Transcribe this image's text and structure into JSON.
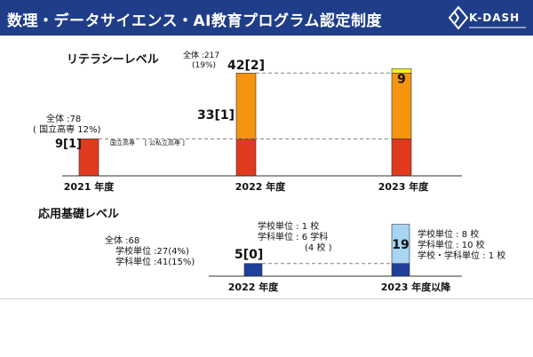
{
  "header": {
    "title": "数理・データサイエンス・AI教育プログラム認定制度",
    "logo_text": "K-DASH"
  },
  "colors": {
    "header_bg": "#1f3d88",
    "national": "#e03a1e",
    "public_private": "#f5950f",
    "new_2023": "#f7f21a",
    "applied_existing": "#1f3f9a",
    "applied_new": "#a8d4f5"
  },
  "chart_data": [
    {
      "type": "bar",
      "title": "リテラシーレベル",
      "categories": [
        "2021 年度",
        "2022 年度",
        "2023 年度"
      ],
      "series": [
        {
          "values": [
            78,
            78,
            78
          ]
        },
        {
          "values": [
            0,
            139,
            139
          ]
        },
        {
          "values": [
            0,
            0,
            9
          ]
        }
      ],
      "value_labels": [
        "9[1]",
        "33[1]",
        "42[2]",
        "9"
      ],
      "annotations": {
        "total_2021": "全体 :78",
        "total_2021_sub": "( 国立高専 12%)",
        "legend_national": "国立高専",
        "legend_public_private": "[ 公私立高専 ]",
        "total_2022": "全体 :217",
        "total_2022_sub": "(19%)"
      },
      "ylim": [
        0,
        240
      ]
    },
    {
      "type": "bar",
      "title": "応用基礎レベル",
      "categories": [
        "2022 年度",
        "2023 年度以降"
      ],
      "series": [
        {
          "values": [
            68,
            68
          ]
        },
        {
          "values": [
            0,
            210
          ]
        }
      ],
      "value_labels": [
        "5[0]",
        "19"
      ],
      "annotations": {
        "total": "全体 :68",
        "school_unit": "学校単位 :27(4%)",
        "dept_unit": "学科単位 :41(15%)",
        "mid_school": "学校単位 : 1 校",
        "mid_dept": "学科単位 : 6 学科",
        "mid_dept_sub": "(4 校 )",
        "right_school": "学校単位 : 8 校",
        "right_dept": "学科単位 : 10 校",
        "right_both": "学校・学科単位 : 1 校"
      },
      "ylim": [
        0,
        300
      ]
    }
  ]
}
